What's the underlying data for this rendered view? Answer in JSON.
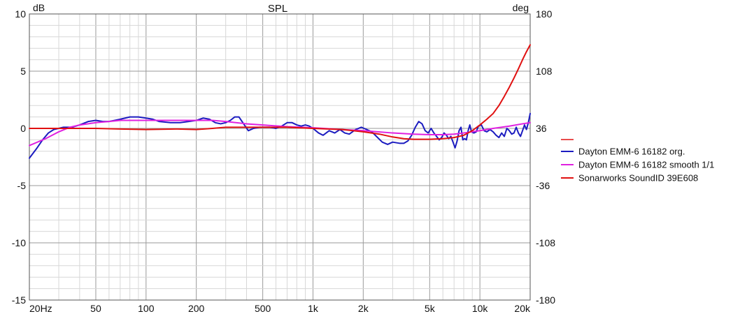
{
  "chart_data": {
    "type": "line",
    "title": "SPL",
    "left_unit": "dB",
    "right_unit": "deg",
    "x_scale": "log",
    "xlim": [
      20,
      20000
    ],
    "ylim": [
      -15,
      10
    ],
    "y2lim": [
      -180,
      180
    ],
    "x_ticks": [
      {
        "v": 20,
        "label": "20Hz"
      },
      {
        "v": 50,
        "label": "50"
      },
      {
        "v": 100,
        "label": "100"
      },
      {
        "v": 200,
        "label": "200"
      },
      {
        "v": 500,
        "label": "500"
      },
      {
        "v": 1000,
        "label": "1k"
      },
      {
        "v": 2000,
        "label": "2k"
      },
      {
        "v": 5000,
        "label": "5k"
      },
      {
        "v": 10000,
        "label": "10k"
      },
      {
        "v": 20000,
        "label": "20k"
      }
    ],
    "y_ticks": [
      {
        "v": 10,
        "label": "10"
      },
      {
        "v": 5,
        "label": "5"
      },
      {
        "v": 0,
        "label": "0"
      },
      {
        "v": -5,
        "label": "-5"
      },
      {
        "v": -10,
        "label": "-10"
      },
      {
        "v": -15,
        "label": "-15"
      }
    ],
    "y2_ticks": [
      {
        "v": 180,
        "label": "180"
      },
      {
        "v": 108,
        "label": "108"
      },
      {
        "v": 36,
        "label": "36"
      },
      {
        "v": -36,
        "label": "-36"
      },
      {
        "v": -108,
        "label": "-108"
      },
      {
        "v": -180,
        "label": "-180"
      }
    ],
    "grid": true,
    "legend_position": "right",
    "legend_extra_swatch_color": "#e01010",
    "series": [
      {
        "name": "Dayton EMM-6 16182 org.",
        "color": "#1c1cc0",
        "points": [
          [
            20,
            -2.6
          ],
          [
            22,
            -1.8
          ],
          [
            24,
            -1.0
          ],
          [
            26,
            -0.4
          ],
          [
            28,
            -0.1
          ],
          [
            32,
            0.1
          ],
          [
            36,
            0.1
          ],
          [
            40,
            0.3
          ],
          [
            45,
            0.6
          ],
          [
            50,
            0.7
          ],
          [
            55,
            0.6
          ],
          [
            60,
            0.6
          ],
          [
            65,
            0.7
          ],
          [
            70,
            0.8
          ],
          [
            80,
            1.0
          ],
          [
            90,
            1.0
          ],
          [
            100,
            0.9
          ],
          [
            110,
            0.8
          ],
          [
            120,
            0.6
          ],
          [
            140,
            0.5
          ],
          [
            160,
            0.5
          ],
          [
            180,
            0.6
          ],
          [
            200,
            0.7
          ],
          [
            220,
            0.9
          ],
          [
            240,
            0.8
          ],
          [
            260,
            0.5
          ],
          [
            280,
            0.4
          ],
          [
            300,
            0.5
          ],
          [
            320,
            0.7
          ],
          [
            340,
            1.0
          ],
          [
            360,
            1.0
          ],
          [
            380,
            0.5
          ],
          [
            410,
            -0.2
          ],
          [
            440,
            0.0
          ],
          [
            480,
            0.1
          ],
          [
            550,
            0.1
          ],
          [
            600,
            0.0
          ],
          [
            650,
            0.2
          ],
          [
            700,
            0.5
          ],
          [
            750,
            0.5
          ],
          [
            800,
            0.3
          ],
          [
            850,
            0.2
          ],
          [
            900,
            0.3
          ],
          [
            950,
            0.2
          ],
          [
            1000,
            0.0
          ],
          [
            1080,
            -0.4
          ],
          [
            1150,
            -0.6
          ],
          [
            1250,
            -0.2
          ],
          [
            1350,
            -0.4
          ],
          [
            1450,
            -0.1
          ],
          [
            1550,
            -0.4
          ],
          [
            1650,
            -0.5
          ],
          [
            1800,
            -0.1
          ],
          [
            1950,
            0.1
          ],
          [
            2100,
            -0.1
          ],
          [
            2250,
            -0.3
          ],
          [
            2400,
            -0.7
          ],
          [
            2600,
            -1.2
          ],
          [
            2800,
            -1.4
          ],
          [
            3000,
            -1.2
          ],
          [
            3300,
            -1.3
          ],
          [
            3500,
            -1.3
          ],
          [
            3700,
            -1.1
          ],
          [
            3900,
            -0.6
          ],
          [
            4100,
            0.1
          ],
          [
            4300,
            0.6
          ],
          [
            4500,
            0.4
          ],
          [
            4700,
            -0.2
          ],
          [
            4900,
            -0.4
          ],
          [
            5100,
            0.0
          ],
          [
            5300,
            -0.4
          ],
          [
            5500,
            -0.7
          ],
          [
            5700,
            -1.0
          ],
          [
            5900,
            -0.8
          ],
          [
            6100,
            -0.4
          ],
          [
            6300,
            -0.6
          ],
          [
            6500,
            -0.9
          ],
          [
            6700,
            -0.7
          ],
          [
            6900,
            -1.2
          ],
          [
            7100,
            -1.7
          ],
          [
            7300,
            -1.1
          ],
          [
            7500,
            -0.2
          ],
          [
            7700,
            0.1
          ],
          [
            7900,
            -1.0
          ],
          [
            8100,
            -0.9
          ],
          [
            8300,
            -1.0
          ],
          [
            8500,
            -0.2
          ],
          [
            8700,
            0.3
          ],
          [
            8900,
            -0.3
          ],
          [
            9200,
            -0.4
          ],
          [
            9500,
            -0.3
          ],
          [
            9800,
            0.2
          ],
          [
            10200,
            0.3
          ],
          [
            10600,
            -0.2
          ],
          [
            11000,
            -0.3
          ],
          [
            11500,
            -0.1
          ],
          [
            12000,
            -0.3
          ],
          [
            12500,
            -0.6
          ],
          [
            13000,
            -0.8
          ],
          [
            13500,
            -0.4
          ],
          [
            14000,
            -0.7
          ],
          [
            14500,
            0.0
          ],
          [
            15000,
            -0.2
          ],
          [
            15500,
            -0.5
          ],
          [
            16000,
            -0.4
          ],
          [
            16500,
            0.1
          ],
          [
            17000,
            -0.4
          ],
          [
            17500,
            -0.7
          ],
          [
            18000,
            -0.2
          ],
          [
            18500,
            0.3
          ],
          [
            19000,
            -0.1
          ],
          [
            19500,
            0.5
          ],
          [
            20000,
            1.3
          ]
        ]
      },
      {
        "name": "Dayton EMM-6 16182 smooth 1/1",
        "color": "#e020e0",
        "points": [
          [
            20,
            -1.5
          ],
          [
            25,
            -0.9
          ],
          [
            30,
            -0.3
          ],
          [
            35,
            0.1
          ],
          [
            40,
            0.3
          ],
          [
            50,
            0.5
          ],
          [
            60,
            0.6
          ],
          [
            70,
            0.7
          ],
          [
            80,
            0.7
          ],
          [
            100,
            0.7
          ],
          [
            150,
            0.7
          ],
          [
            200,
            0.7
          ],
          [
            250,
            0.7
          ],
          [
            300,
            0.6
          ],
          [
            400,
            0.4
          ],
          [
            500,
            0.3
          ],
          [
            700,
            0.15
          ],
          [
            1000,
            0.05
          ],
          [
            1500,
            -0.1
          ],
          [
            2000,
            -0.2
          ],
          [
            3000,
            -0.4
          ],
          [
            4000,
            -0.5
          ],
          [
            5000,
            -0.55
          ],
          [
            6000,
            -0.55
          ],
          [
            7000,
            -0.5
          ],
          [
            8000,
            -0.4
          ],
          [
            10000,
            -0.2
          ],
          [
            12000,
            0.0
          ],
          [
            15000,
            0.2
          ],
          [
            18000,
            0.4
          ],
          [
            20000,
            0.5
          ]
        ]
      },
      {
        "name": "Sonarworks SoundID 39E608",
        "color": "#e01010",
        "points": [
          [
            20,
            0.0
          ],
          [
            30,
            0.0
          ],
          [
            50,
            0.0
          ],
          [
            70,
            -0.05
          ],
          [
            100,
            -0.1
          ],
          [
            150,
            -0.05
          ],
          [
            200,
            -0.1
          ],
          [
            250,
            0.0
          ],
          [
            300,
            0.1
          ],
          [
            400,
            0.1
          ],
          [
            500,
            0.1
          ],
          [
            700,
            0.1
          ],
          [
            1000,
            0.0
          ],
          [
            1500,
            -0.1
          ],
          [
            2000,
            -0.3
          ],
          [
            2500,
            -0.5
          ],
          [
            3000,
            -0.75
          ],
          [
            3500,
            -0.9
          ],
          [
            4000,
            -0.95
          ],
          [
            5000,
            -0.95
          ],
          [
            6000,
            -0.9
          ],
          [
            7000,
            -0.8
          ],
          [
            8000,
            -0.6
          ],
          [
            9000,
            -0.2
          ],
          [
            10000,
            0.3
          ],
          [
            11000,
            0.8
          ],
          [
            12000,
            1.3
          ],
          [
            13000,
            2.0
          ],
          [
            14000,
            2.8
          ],
          [
            15000,
            3.6
          ],
          [
            16000,
            4.4
          ],
          [
            17000,
            5.2
          ],
          [
            18000,
            6.0
          ],
          [
            19000,
            6.7
          ],
          [
            20000,
            7.3
          ]
        ]
      }
    ]
  }
}
